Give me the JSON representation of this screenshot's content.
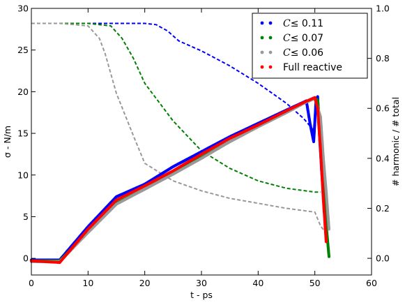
{
  "chart_data": {
    "type": "line",
    "xlabel": "t - ps",
    "ylabel": "σ - N/m",
    "y2label": "# harmonic / # total",
    "xlim": [
      0,
      60
    ],
    "ylim": [
      -2,
      30
    ],
    "y2lim": [
      -0.0667,
      1.0
    ],
    "x_ticks": [
      0,
      10,
      20,
      30,
      40,
      50,
      60
    ],
    "y_ticks": [
      0,
      5,
      10,
      15,
      20,
      25,
      30
    ],
    "y2_ticks": [
      0.0,
      0.2,
      0.4,
      0.6,
      0.8,
      1.0
    ],
    "y2_tick_labels": [
      "0.0",
      "0.2",
      "0.4",
      "0.6",
      "0.8",
      "1.0"
    ],
    "grid": false,
    "legend_position": "top-right",
    "legend": [
      {
        "prefix": "C",
        "text": "≤ 0.11",
        "color": "#0000ff"
      },
      {
        "prefix": "C",
        "text": "≤ 0.07",
        "color": "#008000"
      },
      {
        "prefix": "C",
        "text": "≤ 0.06",
        "color": "#999999"
      },
      {
        "prefix": "",
        "text": "Full reactive",
        "color": "#ff0000"
      }
    ],
    "stress_series": [
      {
        "name": "C ≤ 0.11",
        "color": "#0000ff",
        "style": "dots",
        "axis": "left",
        "x": [
          0,
          5,
          10,
          15,
          20,
          25,
          30,
          35,
          40,
          45,
          48.5,
          49.2,
          49.8,
          50.2,
          50.5,
          50.8,
          51.2,
          51.6
        ],
        "y": [
          -0.2,
          -0.2,
          3.8,
          7.4,
          8.9,
          11.0,
          12.8,
          14.6,
          16.2,
          17.8,
          18.9,
          16.0,
          14.0,
          18.8,
          19.4,
          15.0,
          10.5,
          6.8
        ]
      },
      {
        "name": "C ≤ 0.07",
        "color": "#008000",
        "style": "dots",
        "axis": "left",
        "x": [
          0,
          5,
          10,
          15,
          20,
          25,
          30,
          35,
          40,
          45,
          48,
          50,
          50.5,
          51.0,
          51.5,
          52.0,
          52.5
        ],
        "y": [
          -0.3,
          -0.3,
          3.2,
          6.6,
          8.3,
          10.2,
          12.1,
          14.0,
          15.8,
          17.5,
          18.6,
          19.2,
          19.0,
          15.0,
          10.0,
          4.0,
          0.2
        ]
      },
      {
        "name": "C ≤ 0.06",
        "color": "#999999",
        "style": "dots",
        "axis": "left",
        "x": [
          0,
          5,
          10,
          15,
          20,
          25,
          30,
          35,
          40,
          45,
          48,
          50,
          51.0,
          51.5,
          52.0,
          52.5
        ],
        "y": [
          -0.4,
          -0.4,
          3.1,
          6.5,
          8.3,
          10.1,
          12.0,
          14.0,
          15.8,
          17.5,
          18.6,
          19.2,
          17.0,
          12.0,
          8.0,
          3.5
        ]
      },
      {
        "name": "Full reactive",
        "color": "#ff0000",
        "style": "dots",
        "axis": "left",
        "x": [
          0,
          5,
          10,
          15,
          20,
          25,
          30,
          35,
          40,
          45,
          48,
          50,
          50.5,
          51.0,
          51.5,
          52.0
        ],
        "y": [
          -0.3,
          -0.5,
          3.5,
          7.0,
          8.7,
          10.5,
          12.5,
          14.4,
          16.0,
          17.7,
          18.7,
          19.3,
          18.0,
          13.0,
          7.0,
          2.0
        ]
      }
    ],
    "ratio_series": [
      {
        "name": "C ≤ 0.11 ratio",
        "color": "#0000ff",
        "style": "dashed",
        "axis": "right",
        "x": [
          0,
          5,
          10,
          15,
          20,
          22,
          24,
          26,
          30,
          35,
          40,
          45,
          48,
          49.5,
          50
        ],
        "y": [
          0.94,
          0.94,
          0.94,
          0.94,
          0.94,
          0.935,
          0.91,
          0.87,
          0.83,
          0.77,
          0.7,
          0.62,
          0.56,
          0.52,
          0.5
        ]
      },
      {
        "name": "C ≤ 0.07 ratio",
        "color": "#008000",
        "style": "dashed",
        "axis": "right",
        "x": [
          0,
          5,
          10,
          14,
          16,
          18,
          20,
          25,
          30,
          35,
          40,
          45,
          50,
          51
        ],
        "y": [
          0.94,
          0.94,
          0.94,
          0.93,
          0.88,
          0.8,
          0.7,
          0.55,
          0.43,
          0.36,
          0.31,
          0.28,
          0.265,
          0.265
        ]
      },
      {
        "name": "C ≤ 0.06 ratio",
        "color": "#999999",
        "style": "dashed",
        "axis": "right",
        "x": [
          0,
          5,
          10,
          12,
          13,
          15,
          18,
          20,
          25,
          30,
          35,
          40,
          45,
          50,
          51,
          52
        ],
        "y": [
          0.94,
          0.94,
          0.93,
          0.88,
          0.82,
          0.66,
          0.49,
          0.38,
          0.31,
          0.27,
          0.24,
          0.22,
          0.2,
          0.185,
          0.13,
          0.1
        ]
      }
    ]
  }
}
